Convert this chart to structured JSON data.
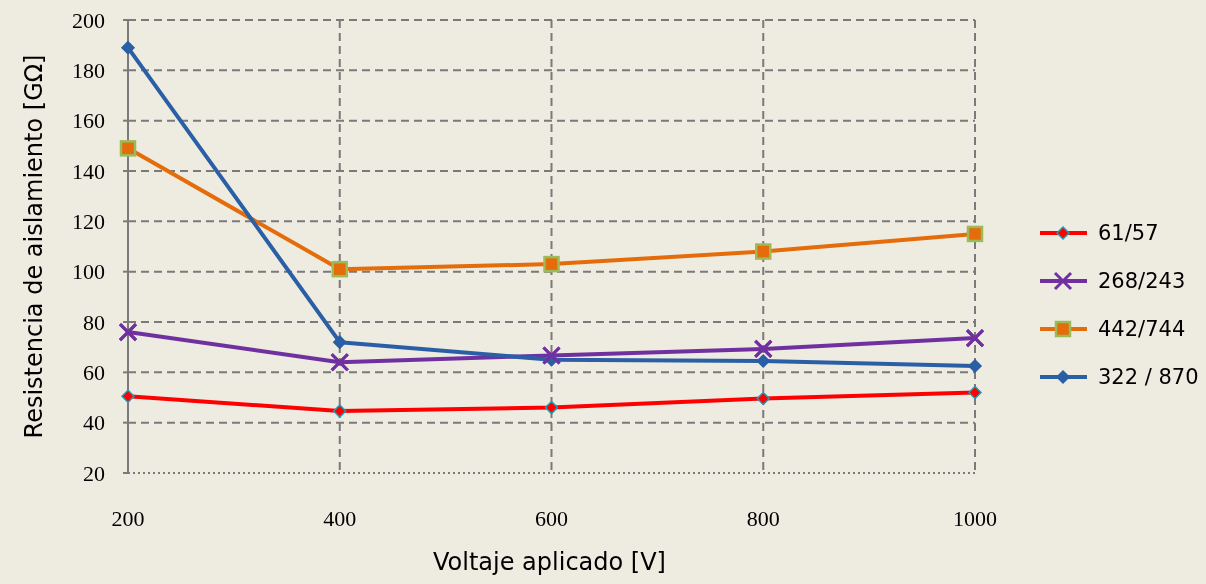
{
  "chart_data": {
    "type": "line",
    "xlabel": "Voltaje aplicado [V]",
    "ylabel": "Resistencia de aislamiento [GΩ]",
    "x": [
      200,
      400,
      600,
      800,
      1000
    ],
    "xlim": [
      200,
      1000
    ],
    "xticks": [
      200,
      400,
      600,
      800,
      1000
    ],
    "ylim": [
      20,
      200
    ],
    "yticks": [
      20,
      40,
      60,
      80,
      100,
      120,
      140,
      160,
      180,
      200
    ],
    "grid": true,
    "legend": "right",
    "line_style": "solid",
    "series": [
      {
        "name": "61/57",
        "color": "#ff0000",
        "marker": "diamond",
        "values": [
          50.5,
          44.6,
          46,
          49.6,
          52
        ]
      },
      {
        "name": "268/243",
        "color": "#7030a0",
        "marker": "cross",
        "values": [
          76,
          64,
          66.7,
          69.3,
          73.6
        ]
      },
      {
        "name": "442/744",
        "color": "#e46c0a",
        "marker": "square",
        "values": [
          149,
          101,
          103,
          108,
          115
        ]
      },
      {
        "name": "322 / 870",
        "color": "#2a5fa5",
        "marker": "diamond",
        "values": [
          189,
          72,
          65,
          64.5,
          62.5
        ]
      }
    ]
  }
}
